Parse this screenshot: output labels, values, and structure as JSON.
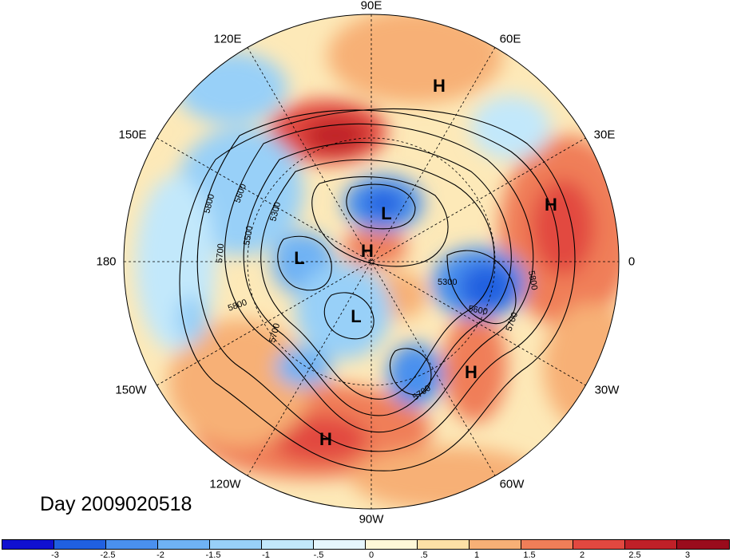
{
  "day_label": "Day 2009020518",
  "longitude_labels": {
    "lon_90E": "90E",
    "lon_60E": "60E",
    "lon_30E": "30E",
    "lon_0": "0",
    "lon_30W": "30W",
    "lon_60W": "60W",
    "lon_90W": "90W",
    "lon_120W": "120W",
    "lon_150W": "150W",
    "lon_180": "180",
    "lon_150E": "150E",
    "lon_120E": "120E"
  },
  "pressure_centers": {
    "high_siberia": "H",
    "high_europe": "H",
    "high_arctic": "H",
    "high_atlantic": "H",
    "high_mexico": "H",
    "low_east_siberia": "L",
    "low_alaska": "L",
    "low_canada": "L"
  },
  "contour_labels": {
    "c5800_pacific": "5800",
    "c5600_pacific": "5600",
    "c5500_pacific": "5500",
    "c5300_pacific": "5300",
    "c5700_pacific": "5700",
    "c5800_west": "5800",
    "c5700_west": "5700",
    "c5300_europe": "5300",
    "c5600_europe": "5600",
    "c5700_europe": "5700",
    "c5800_europe": "5800",
    "c5700_atlantic": "5700"
  },
  "colorbar": {
    "tick_labels": {
      "t1": "-3",
      "t2": "-2.5",
      "t3": "-2",
      "t4": "-1.5",
      "t5": "-1",
      "t6": "-.5",
      "t7": "0",
      "t8": ".5",
      "t9": "1",
      "t10": "1.5",
      "t11": "2",
      "t12": "2.5",
      "t13": "3"
    },
    "colors": [
      "#1010d0",
      "#2060e0",
      "#4a90ee",
      "#6fb2f4",
      "#98d0f8",
      "#c2e8fb",
      "#e6f6fd",
      "#fef8d8",
      "#fde0a6",
      "#f7b076",
      "#f07e58",
      "#e24840",
      "#c02028",
      "#9a0c1c"
    ]
  }
}
